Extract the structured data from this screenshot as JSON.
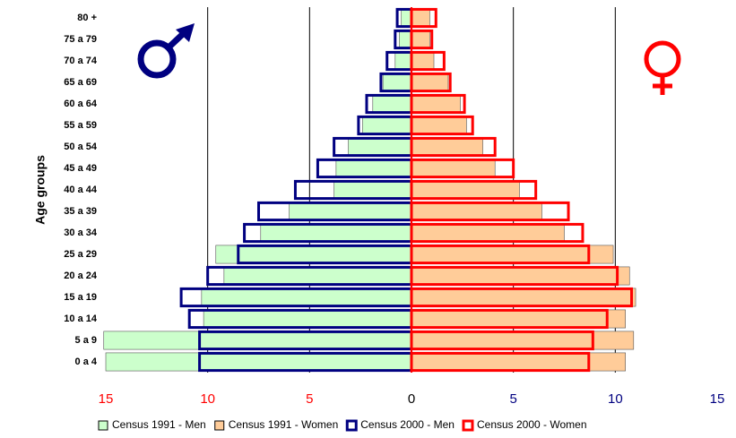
{
  "chart_data": {
    "type": "pyramid",
    "y_label": "Age groups",
    "categories": [
      "80 +",
      "75 a 79",
      "70 a 74",
      "65 a 69",
      "60 a 64",
      "55 a 59",
      "50 a 54",
      "45 a 49",
      "40 a 44",
      "35 a 39",
      "30 a 34",
      "25 a 29",
      "20 a 24",
      "15 a 19",
      "10 a 14",
      "5 a 9",
      "0 a 4"
    ],
    "series": [
      {
        "name": "Census 1991 - Men",
        "side": "left",
        "style": "fill",
        "color": "#ccffcc",
        "values": [
          0.5,
          0.6,
          0.8,
          1.4,
          1.9,
          2.4,
          3.1,
          3.7,
          3.8,
          6.0,
          7.4,
          9.6,
          9.2,
          10.3,
          10.2,
          15.1,
          15.0
        ]
      },
      {
        "name": "Census 1991 - Women",
        "side": "right",
        "style": "fill",
        "color": "#ffcc99",
        "values": [
          0.9,
          0.9,
          1.1,
          1.8,
          2.4,
          2.7,
          3.5,
          4.1,
          5.3,
          6.4,
          7.5,
          9.9,
          10.7,
          11.0,
          10.5,
          10.9,
          10.5
        ]
      },
      {
        "name": "Census 2000 - Men",
        "side": "left",
        "style": "outline",
        "color": "#000080",
        "values": [
          0.7,
          0.8,
          1.2,
          1.5,
          2.2,
          2.6,
          3.8,
          4.6,
          5.7,
          7.5,
          8.2,
          8.5,
          10.0,
          11.3,
          10.9,
          10.4,
          10.4
        ]
      },
      {
        "name": "Census 2000 - Women",
        "side": "right",
        "style": "outline",
        "color": "#ff0000",
        "values": [
          1.2,
          1.0,
          1.6,
          1.9,
          2.6,
          3.0,
          4.1,
          5.0,
          6.1,
          7.7,
          8.4,
          8.7,
          10.1,
          10.8,
          9.6,
          8.9,
          8.7
        ]
      }
    ],
    "xlim": [
      -15,
      15
    ],
    "xticks": [
      {
        "value": -15,
        "label": "15"
      },
      {
        "value": -10,
        "label": "10"
      },
      {
        "value": -5,
        "label": "5"
      },
      0,
      5,
      10,
      15
    ],
    "grid": true,
    "legend": "bottom"
  }
}
